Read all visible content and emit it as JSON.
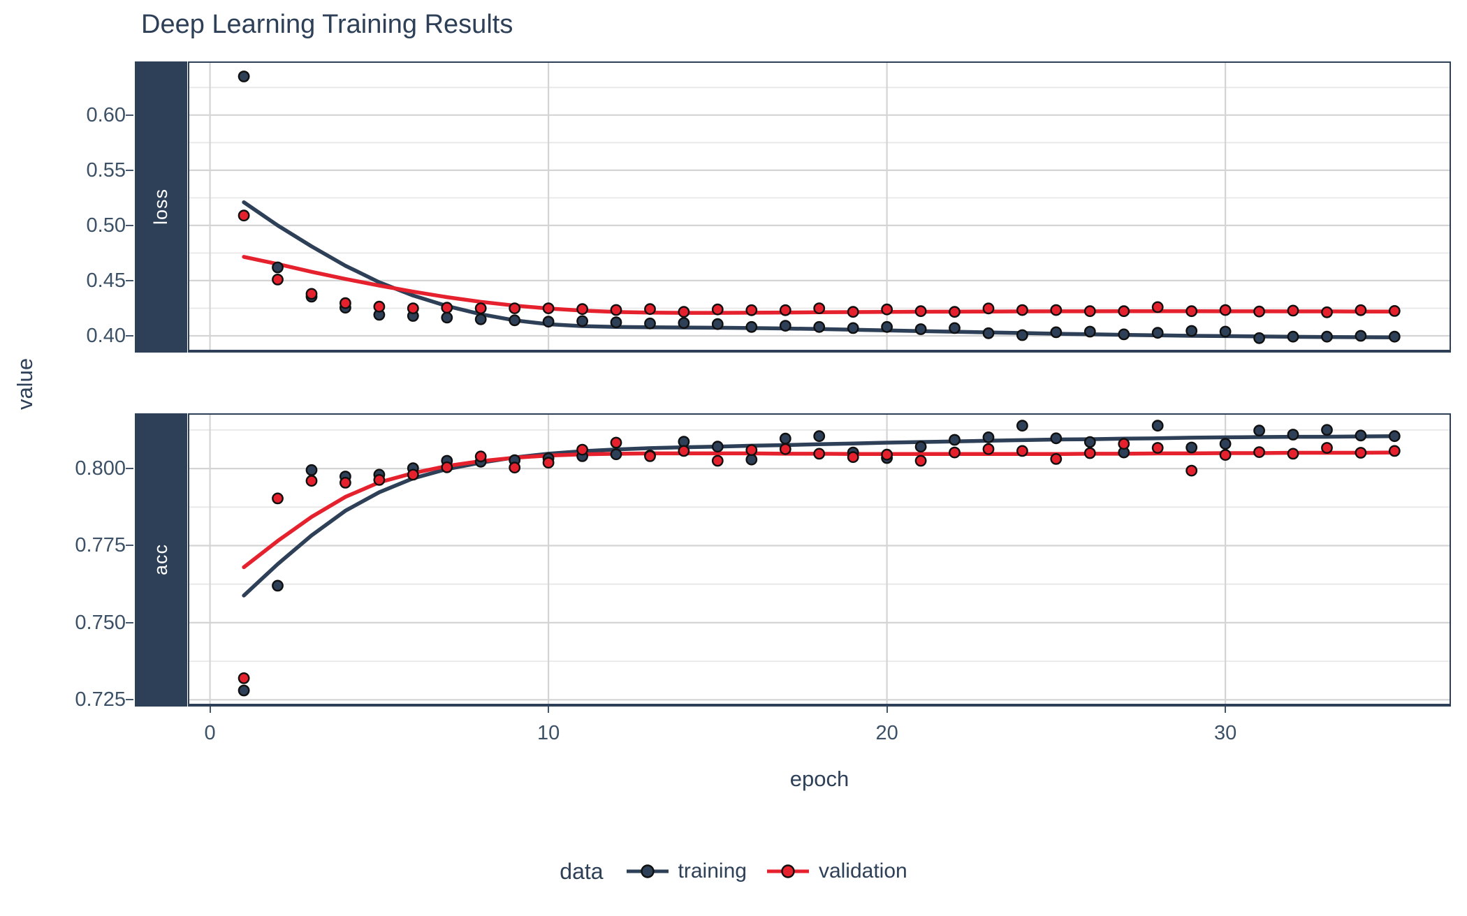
{
  "title": "Deep Learning Training Results",
  "axes": {
    "x_title": "epoch",
    "y_title": "value",
    "x_ticks": [
      0,
      10,
      20,
      30
    ],
    "x_tick_labels": [
      "0",
      "10",
      "20",
      "30"
    ]
  },
  "legend": {
    "title": "data",
    "position": "bottom",
    "entries": [
      {
        "label": "training",
        "color": "#2E4057"
      },
      {
        "label": "validation",
        "color": "#E5212E"
      }
    ]
  },
  "colors": {
    "training": "#2E4057",
    "validation": "#E5212E",
    "strip_background": "#2E4057",
    "panel_border": "#2E4057",
    "grid_major": "#D4D4D4",
    "grid_minor": "#E8E8E8",
    "point_outline": "#101010",
    "text": "#2E4057",
    "tick_text": "#3D5166"
  },
  "chart_data": [
    {
      "type": "scatter",
      "facet": "loss",
      "xlabel": "epoch",
      "ylabel": "value",
      "grid": true,
      "legend_position": "bottom",
      "x": [
        1,
        2,
        3,
        4,
        5,
        6,
        7,
        8,
        9,
        10,
        11,
        12,
        13,
        14,
        15,
        16,
        17,
        18,
        19,
        20,
        21,
        22,
        23,
        24,
        25,
        26,
        27,
        28,
        29,
        30,
        31,
        32,
        33,
        34,
        35
      ],
      "xlim": [
        -0.65,
        36.66
      ],
      "ylim": [
        0.3848,
        0.6486
      ],
      "y_ticks": [
        0.4,
        0.45,
        0.5,
        0.55,
        0.6
      ],
      "y_tick_labels": [
        "0.40",
        "0.45",
        "0.50",
        "0.55",
        "0.60"
      ],
      "y_minor": [
        0.425,
        0.475,
        0.525,
        0.575,
        0.625
      ],
      "series": [
        {
          "name": "training",
          "color": "#2E4057",
          "values": [
            0.635,
            0.462,
            0.4355,
            0.4255,
            0.419,
            0.418,
            0.4165,
            0.415,
            0.414,
            0.4128,
            0.4133,
            0.4122,
            0.4112,
            0.4116,
            0.4106,
            0.408,
            0.4091,
            0.408,
            0.407,
            0.408,
            0.406,
            0.407,
            0.4023,
            0.4006,
            0.4032,
            0.4038,
            0.4013,
            0.4027,
            0.4044,
            0.4038,
            0.3979,
            0.3992,
            0.3992,
            0.4,
            0.3992
          ],
          "trend": [
            0.521,
            0.5,
            0.481,
            0.4635,
            0.4485,
            0.4365,
            0.427,
            0.4195,
            0.414,
            0.4105,
            0.4088,
            0.408,
            0.4077,
            0.4075,
            0.4073,
            0.407,
            0.4066,
            0.4061,
            0.4055,
            0.4049,
            0.4043,
            0.4037,
            0.4031,
            0.4025,
            0.4019,
            0.4014,
            0.4009,
            0.4004,
            0.4,
            0.3997,
            0.3994,
            0.3991,
            0.3989,
            0.3987,
            0.3985
          ]
        },
        {
          "name": "validation",
          "color": "#E5212E",
          "values": [
            0.509,
            0.451,
            0.438,
            0.4296,
            0.4264,
            0.4249,
            0.4255,
            0.4249,
            0.4249,
            0.4249,
            0.4242,
            0.4234,
            0.4242,
            0.4217,
            0.4239,
            0.4232,
            0.4232,
            0.4249,
            0.4217,
            0.4239,
            0.4223,
            0.4217,
            0.4248,
            0.4233,
            0.4233,
            0.4223,
            0.4223,
            0.426,
            0.4223,
            0.4233,
            0.422,
            0.4228,
            0.4213,
            0.4232,
            0.4225
          ],
          "trend": [
            0.4715,
            0.465,
            0.458,
            0.4515,
            0.4455,
            0.44,
            0.435,
            0.4308,
            0.4274,
            0.4247,
            0.4228,
            0.4216,
            0.421,
            0.4208,
            0.4208,
            0.4209,
            0.4211,
            0.4213,
            0.4215,
            0.4217,
            0.4218,
            0.4219,
            0.422,
            0.4221,
            0.4222,
            0.4222,
            0.4223,
            0.4223,
            0.4223,
            0.4222,
            0.4222,
            0.4221,
            0.4221,
            0.422,
            0.422
          ]
        }
      ]
    },
    {
      "type": "scatter",
      "facet": "acc",
      "xlabel": "epoch",
      "ylabel": "value",
      "grid": true,
      "legend_position": "bottom",
      "x": [
        1,
        2,
        3,
        4,
        5,
        6,
        7,
        8,
        9,
        10,
        11,
        12,
        13,
        14,
        15,
        16,
        17,
        18,
        19,
        20,
        21,
        22,
        23,
        24,
        25,
        26,
        27,
        28,
        29,
        30,
        31,
        32,
        33,
        34,
        35
      ],
      "xlim": [
        -0.65,
        36.66
      ],
      "ylim": [
        0.7228,
        0.8179
      ],
      "y_ticks": [
        0.725,
        0.75,
        0.775,
        0.8
      ],
      "y_tick_labels": [
        "0.725",
        "0.750",
        "0.775",
        "0.800"
      ],
      "y_minor": [
        0.7375,
        0.7625,
        0.7875,
        0.8125
      ],
      "series": [
        {
          "name": "training",
          "color": "#2E4057",
          "values": [
            0.728,
            0.762,
            0.7995,
            0.7974,
            0.798,
            0.8001,
            0.8025,
            0.8022,
            0.8027,
            0.8033,
            0.804,
            0.8046,
            0.8042,
            0.8087,
            0.8071,
            0.8029,
            0.8097,
            0.8105,
            0.8052,
            0.8034,
            0.8071,
            0.8093,
            0.8101,
            0.8139,
            0.8098,
            0.8086,
            0.8052,
            0.8139,
            0.8068,
            0.808,
            0.8123,
            0.811,
            0.8125,
            0.8107,
            0.8105
          ],
          "trend": [
            0.7588,
            0.769,
            0.7783,
            0.7863,
            0.7923,
            0.7968,
            0.7998,
            0.8019,
            0.8036,
            0.8048,
            0.8056,
            0.8062,
            0.8066,
            0.8069,
            0.8071,
            0.8074,
            0.8076,
            0.8079,
            0.8081,
            0.8084,
            0.8086,
            0.8088,
            0.809,
            0.8092,
            0.8094,
            0.8095,
            0.8097,
            0.8098,
            0.81,
            0.8101,
            0.8102,
            0.8103,
            0.8103,
            0.8104,
            0.8105
          ]
        },
        {
          "name": "validation",
          "color": "#E5212E",
          "values": [
            0.732,
            0.7903,
            0.796,
            0.7954,
            0.7963,
            0.798,
            0.8004,
            0.8039,
            0.8003,
            0.8019,
            0.8061,
            0.8084,
            0.804,
            0.8057,
            0.8025,
            0.806,
            0.8063,
            0.8048,
            0.8037,
            0.8045,
            0.8025,
            0.8052,
            0.8063,
            0.8057,
            0.8031,
            0.805,
            0.808,
            0.8067,
            0.7993,
            0.8044,
            0.8053,
            0.8048,
            0.8067,
            0.8051,
            0.8057
          ],
          "trend": [
            0.768,
            0.7765,
            0.7843,
            0.7908,
            0.7955,
            0.7985,
            0.8008,
            0.8024,
            0.8035,
            0.8042,
            0.8046,
            0.8048,
            0.8049,
            0.8049,
            0.8049,
            0.8049,
            0.8048,
            0.8048,
            0.8047,
            0.8047,
            0.8047,
            0.8047,
            0.8047,
            0.8047,
            0.8047,
            0.8048,
            0.8048,
            0.8049,
            0.8049,
            0.805,
            0.805,
            0.8051,
            0.8051,
            0.8051,
            0.8052
          ]
        }
      ]
    }
  ]
}
